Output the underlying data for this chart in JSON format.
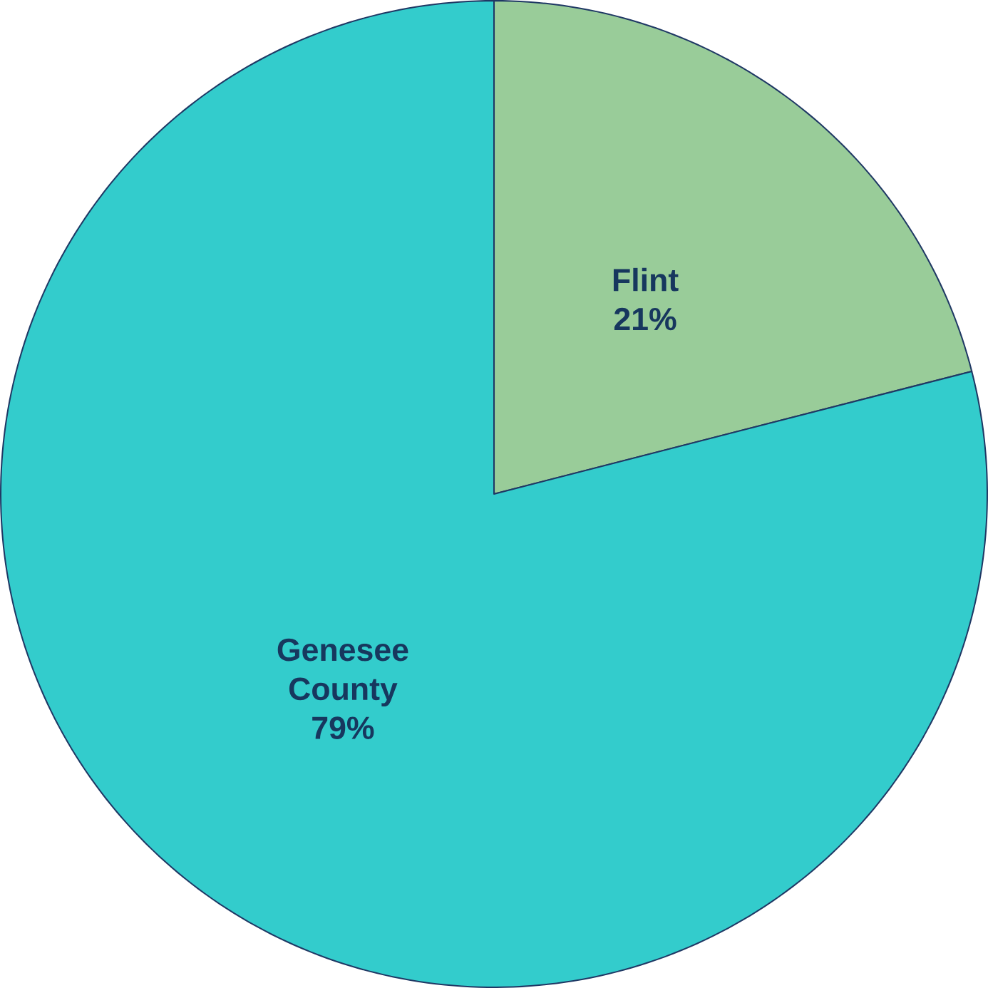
{
  "chart_data": {
    "type": "pie",
    "categories": [
      "Flint",
      "Genesee County"
    ],
    "values": [
      21,
      79
    ],
    "colors": [
      "#99cc99",
      "#33cccc"
    ],
    "value_labels": [
      "21%",
      "79%"
    ]
  }
}
